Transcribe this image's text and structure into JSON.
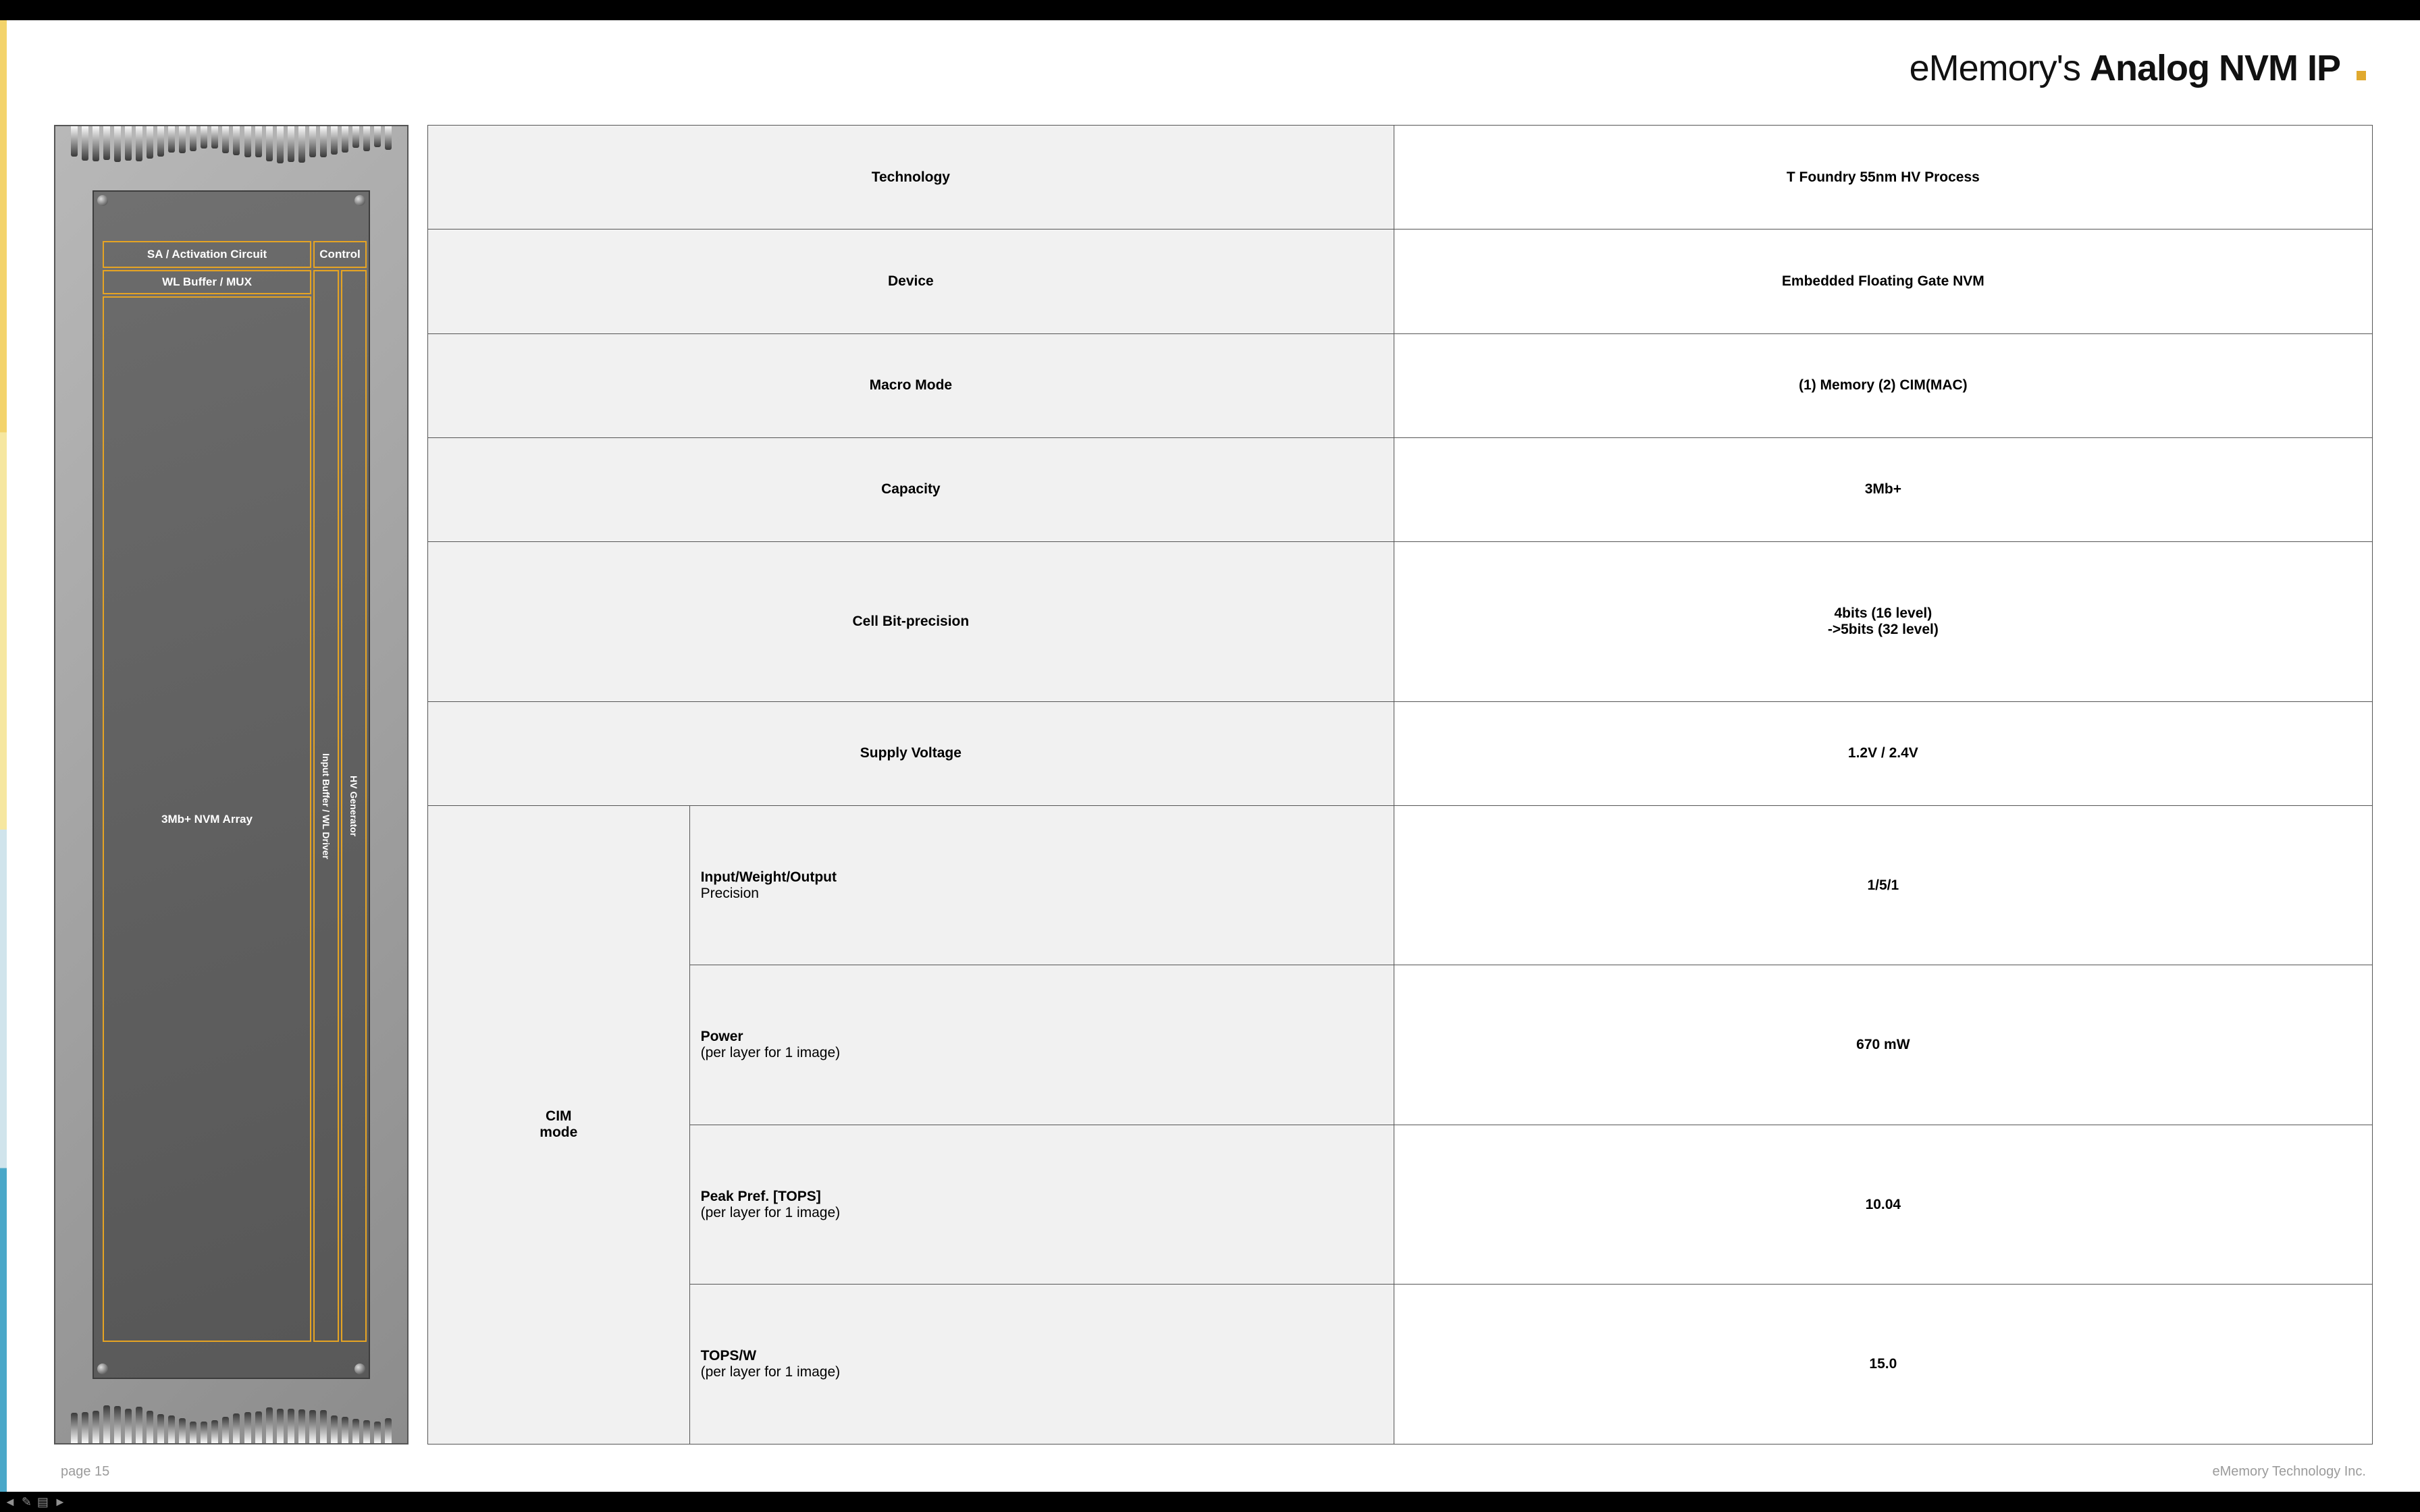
{
  "colors": {
    "accent_orange": "#e0a92f",
    "block_border": "#e6a423",
    "text_dark": "#111111",
    "table_border": "#555555",
    "table_label_bg": "#f1f1f1",
    "table_value_bg": "#ffffff",
    "footer_text": "#9b9b9b",
    "accent_bar": [
      "#f3d36b",
      "#f6e7a0",
      "#d0e4ec",
      "#4aa8c9"
    ]
  },
  "title": {
    "prefix": "eMemory's ",
    "main": "Analog NVM IP",
    "fontsize_pt": 40
  },
  "chip": {
    "pins_per_side": 30,
    "blocks": {
      "sa": "SA / Activation Circuit",
      "ctrl": "Control",
      "wl": "WL Buffer / MUX",
      "arr": "3Mb+ NVM Array",
      "ibuf": "Input Buffer / WL Driver",
      "hv": "HV Generator"
    }
  },
  "table": {
    "type": "table",
    "rows": [
      {
        "label": "Technology",
        "value": "T Foundry 55nm HV Process"
      },
      {
        "label": "Device",
        "value": "Embedded Floating Gate NVM"
      },
      {
        "label": "Macro Mode",
        "value": "(1) Memory  (2) CIM(MAC)"
      },
      {
        "label": "Capacity",
        "value": "3Mb+"
      },
      {
        "label": "Cell Bit-precision",
        "value": "4bits (16 level)\n->5bits (32 level)"
      },
      {
        "label": "Supply Voltage",
        "value": "1.2V / 2.4V"
      }
    ],
    "cim_group": {
      "header": "CIM mode",
      "rows": [
        {
          "label_strong": "Input/Weight/Output",
          "label_sub": "Precision",
          "value": "1/5/1"
        },
        {
          "label_strong": "Power",
          "label_sub": "(per layer for 1 image)",
          "value": "670 mW"
        },
        {
          "label_strong": "Peak Pref. [TOPS]",
          "label_sub": "(per layer for 1 image)",
          "value": "10.04"
        },
        {
          "label_strong": "TOPS/W",
          "label_sub": "(per layer for 1 image)",
          "value": "15.0"
        }
      ]
    }
  },
  "footer": {
    "page": "page 15",
    "company": "eMemory Technology Inc."
  },
  "toolbar": {
    "prev": "◄",
    "pen": "✎",
    "menu": "▤",
    "next": "►"
  }
}
